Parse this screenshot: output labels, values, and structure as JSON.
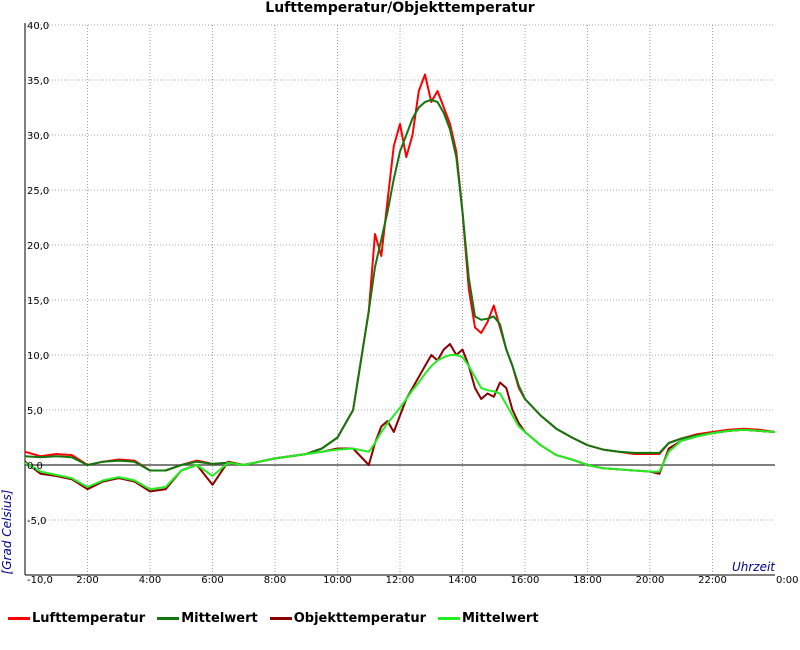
{
  "chart_data": {
    "type": "line",
    "title": "Lufttemperatur/Objekttemperatur",
    "xlabel": "Uhrzeit",
    "ylabel": "[Grad Celsius]",
    "x_unit": "hours",
    "xlim": [
      0,
      24
    ],
    "ylim": [
      -10,
      40
    ],
    "x_ticks": [
      0,
      2,
      4,
      6,
      8,
      10,
      12,
      14,
      16,
      18,
      20,
      22,
      24
    ],
    "x_tick_labels": [
      "",
      "2:00",
      "4:00",
      "6:00",
      "8:00",
      "10:00",
      "12:00",
      "14:00",
      "16:00",
      "18:00",
      "20:00",
      "22:00",
      "0:00"
    ],
    "y_ticks": [
      -10,
      -5,
      0,
      5,
      10,
      15,
      20,
      25,
      30,
      35,
      40
    ],
    "y_tick_labels": [
      "-10,0",
      "-5,0",
      "0,0",
      "5,0",
      "10,0",
      "15,0",
      "20,0",
      "25,0",
      "30,0",
      "35,0",
      "40,0"
    ],
    "grid": true,
    "zero_line": true,
    "legend_position": "bottom",
    "series": [
      {
        "name": "Lufttemperatur",
        "color": "#ff0000",
        "x": [
          0,
          0.5,
          1,
          1.5,
          2,
          2.5,
          3,
          3.5,
          4,
          4.5,
          5,
          5.5,
          6,
          6.5,
          7,
          7.5,
          8,
          8.5,
          9,
          9.5,
          10,
          10.5,
          11,
          11.2,
          11.4,
          11.6,
          11.8,
          12,
          12.2,
          12.4,
          12.6,
          12.8,
          13,
          13.2,
          13.4,
          13.6,
          13.8,
          14,
          14.2,
          14.4,
          14.6,
          14.8,
          15,
          15.2,
          15.4,
          15.6,
          15.8,
          16,
          16.5,
          17,
          17.5,
          18,
          18.5,
          19,
          19.5,
          20,
          20.3,
          20.6,
          21,
          21.5,
          22,
          22.5,
          23,
          23.5,
          24
        ],
        "y": [
          1.2,
          0.8,
          1.0,
          0.9,
          0.0,
          0.3,
          0.5,
          0.4,
          -0.5,
          -0.5,
          0.0,
          0.4,
          0.1,
          0.2,
          0.0,
          0.3,
          0.6,
          0.8,
          1.0,
          1.5,
          2.5,
          5.0,
          14.0,
          21.0,
          19.0,
          24.0,
          29.0,
          31.0,
          28.0,
          30.0,
          34.0,
          35.5,
          33.0,
          34.0,
          32.5,
          31.0,
          28.5,
          23.0,
          16.0,
          12.5,
          12.0,
          13.0,
          14.5,
          12.5,
          10.5,
          9.0,
          7.0,
          6.0,
          4.5,
          3.3,
          2.5,
          1.8,
          1.4,
          1.2,
          1.0,
          1.0,
          1.0,
          2.0,
          2.4,
          2.8,
          3.0,
          3.2,
          3.3,
          3.2,
          3.0
        ]
      },
      {
        "name": "Mittelwert",
        "color": "#117711",
        "x": [
          0,
          0.5,
          1,
          1.5,
          2,
          2.5,
          3,
          3.5,
          4,
          4.5,
          5,
          5.5,
          6,
          6.5,
          7,
          7.5,
          8,
          8.5,
          9,
          9.5,
          10,
          10.5,
          11,
          11.2,
          11.4,
          11.6,
          11.8,
          12,
          12.2,
          12.4,
          12.6,
          12.8,
          13,
          13.2,
          13.4,
          13.6,
          13.8,
          14,
          14.2,
          14.4,
          14.6,
          14.8,
          15,
          15.2,
          15.4,
          15.6,
          15.8,
          16,
          16.5,
          17,
          17.5,
          18,
          18.5,
          19,
          19.5,
          20,
          20.3,
          20.6,
          21,
          21.5,
          22,
          22.5,
          23,
          23.5,
          24
        ],
        "y": [
          0.8,
          0.7,
          0.8,
          0.7,
          0.0,
          0.3,
          0.4,
          0.3,
          -0.5,
          -0.5,
          0.0,
          0.3,
          0.1,
          0.2,
          0.0,
          0.3,
          0.6,
          0.8,
          1.0,
          1.5,
          2.5,
          5.0,
          14.0,
          18.0,
          20.5,
          23.0,
          26.0,
          28.5,
          30.0,
          31.5,
          32.5,
          33.0,
          33.2,
          33.0,
          32.0,
          30.5,
          28.0,
          23.0,
          17.0,
          13.5,
          13.2,
          13.3,
          13.5,
          12.8,
          10.5,
          9.0,
          7.2,
          6.0,
          4.5,
          3.3,
          2.5,
          1.8,
          1.4,
          1.2,
          1.1,
          1.1,
          1.1,
          2.0,
          2.4,
          2.7,
          2.9,
          3.1,
          3.2,
          3.1,
          3.0
        ]
      },
      {
        "name": "Objekttemperatur",
        "color": "#8b0000",
        "x": [
          0,
          0.5,
          1,
          1.5,
          2,
          2.5,
          3,
          3.5,
          4,
          4.5,
          5,
          5.5,
          6,
          6.5,
          7,
          7.5,
          8,
          8.5,
          9,
          9.5,
          10,
          10.5,
          11,
          11.2,
          11.4,
          11.6,
          11.8,
          12,
          12.2,
          12.4,
          12.6,
          12.8,
          13,
          13.2,
          13.4,
          13.6,
          13.8,
          14,
          14.2,
          14.4,
          14.6,
          14.8,
          15,
          15.2,
          15.4,
          15.6,
          15.8,
          16,
          16.5,
          17,
          17.5,
          18,
          18.5,
          19,
          19.5,
          20,
          20.3,
          20.6,
          21,
          21.5,
          22,
          22.5,
          23,
          23.5,
          24
        ],
        "y": [
          0.3,
          -0.8,
          -1.0,
          -1.3,
          -2.2,
          -1.5,
          -1.2,
          -1.5,
          -2.4,
          -2.2,
          -0.5,
          0.0,
          -1.8,
          0.3,
          0.0,
          0.3,
          0.6,
          0.8,
          1.0,
          1.2,
          1.5,
          1.5,
          0.0,
          2.0,
          3.5,
          4.0,
          3.0,
          4.5,
          6.0,
          7.0,
          8.0,
          9.0,
          10.0,
          9.5,
          10.5,
          11.0,
          10.0,
          10.5,
          9.0,
          7.0,
          6.0,
          6.5,
          6.2,
          7.5,
          7.0,
          5.0,
          3.8,
          3.0,
          1.8,
          0.9,
          0.5,
          0.0,
          -0.3,
          -0.4,
          -0.5,
          -0.6,
          -0.8,
          1.5,
          2.2,
          2.6,
          2.9,
          3.1,
          3.2,
          3.1,
          3.0
        ]
      },
      {
        "name": "Mittelwert",
        "color": "#22ee22",
        "x": [
          0,
          0.5,
          1,
          1.5,
          2,
          2.5,
          3,
          3.5,
          4,
          4.5,
          5,
          5.5,
          6,
          6.5,
          7,
          7.5,
          8,
          8.5,
          9,
          9.5,
          10,
          10.5,
          11,
          11.2,
          11.4,
          11.6,
          11.8,
          12,
          12.2,
          12.4,
          12.6,
          12.8,
          13,
          13.2,
          13.4,
          13.6,
          13.8,
          14,
          14.2,
          14.4,
          14.6,
          14.8,
          15,
          15.2,
          15.4,
          15.6,
          15.8,
          16,
          16.5,
          17,
          17.5,
          18,
          18.5,
          19,
          19.5,
          20,
          20.3,
          20.6,
          21,
          21.5,
          22,
          22.5,
          23,
          23.5,
          24
        ],
        "y": [
          0.2,
          -0.6,
          -0.9,
          -1.2,
          -2.0,
          -1.4,
          -1.1,
          -1.4,
          -2.2,
          -2.0,
          -0.5,
          0.0,
          -1.0,
          0.2,
          0.0,
          0.3,
          0.6,
          0.8,
          1.0,
          1.2,
          1.4,
          1.5,
          1.2,
          2.0,
          3.0,
          3.8,
          4.5,
          5.2,
          6.0,
          6.8,
          7.5,
          8.3,
          9.0,
          9.5,
          9.8,
          10.0,
          10.0,
          9.8,
          9.0,
          8.0,
          7.0,
          6.8,
          6.7,
          6.5,
          5.5,
          4.5,
          3.5,
          3.0,
          1.8,
          0.9,
          0.5,
          0.0,
          -0.3,
          -0.4,
          -0.5,
          -0.6,
          -0.6,
          1.2,
          2.2,
          2.6,
          2.9,
          3.1,
          3.2,
          3.1,
          3.0
        ]
      }
    ]
  }
}
